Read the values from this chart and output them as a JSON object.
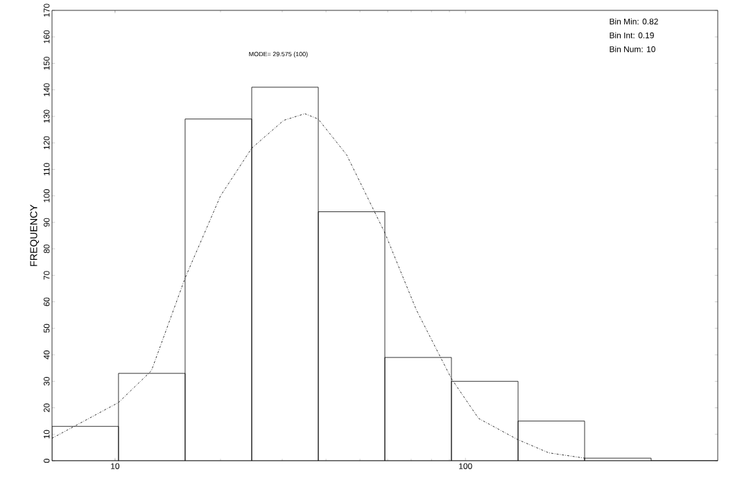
{
  "chart_data": {
    "type": "histogram",
    "ylabel": "FREQUENCY",
    "bins": [
      6.61,
      10.23,
      15.85,
      24.55,
      38.02,
      58.88,
      91.2,
      141.3,
      218.8,
      338.8,
      524.8
    ],
    "values": [
      13,
      33,
      129,
      141,
      94,
      39,
      30,
      15,
      1,
      0
    ],
    "color": "#000000",
    "log": "x",
    "xlim": [
      6.61,
      524.8
    ],
    "xticks": [
      10,
      100
    ],
    "ylim": [
      0,
      170
    ],
    "yticks": [
      0,
      10,
      20,
      30,
      40,
      50,
      60,
      70,
      80,
      90,
      100,
      110,
      120,
      130,
      140,
      150,
      160,
      170
    ],
    "grid": false,
    "series": [
      {
        "type": "line",
        "line_style": "dashed",
        "marker": "none",
        "color": "#000000",
        "x": [
          6.61,
          10.23,
          12.7,
          15.85,
          20.0,
          24.55,
          30.3,
          34.8,
          38.0,
          45.8,
          58.9,
          72.4,
          91.2,
          109,
          141,
          173,
          219
        ],
        "values": [
          8.5,
          22,
          34,
          69,
          100,
          118,
          128.5,
          131,
          129,
          115.5,
          86,
          57,
          31,
          16,
          8,
          3,
          1
        ]
      }
    ],
    "annotations": [
      "MODE= 29.575 (100)",
      "Bin Min: 0.82",
      "Bin Int: 0.19",
      "Bin Num: 10"
    ]
  }
}
